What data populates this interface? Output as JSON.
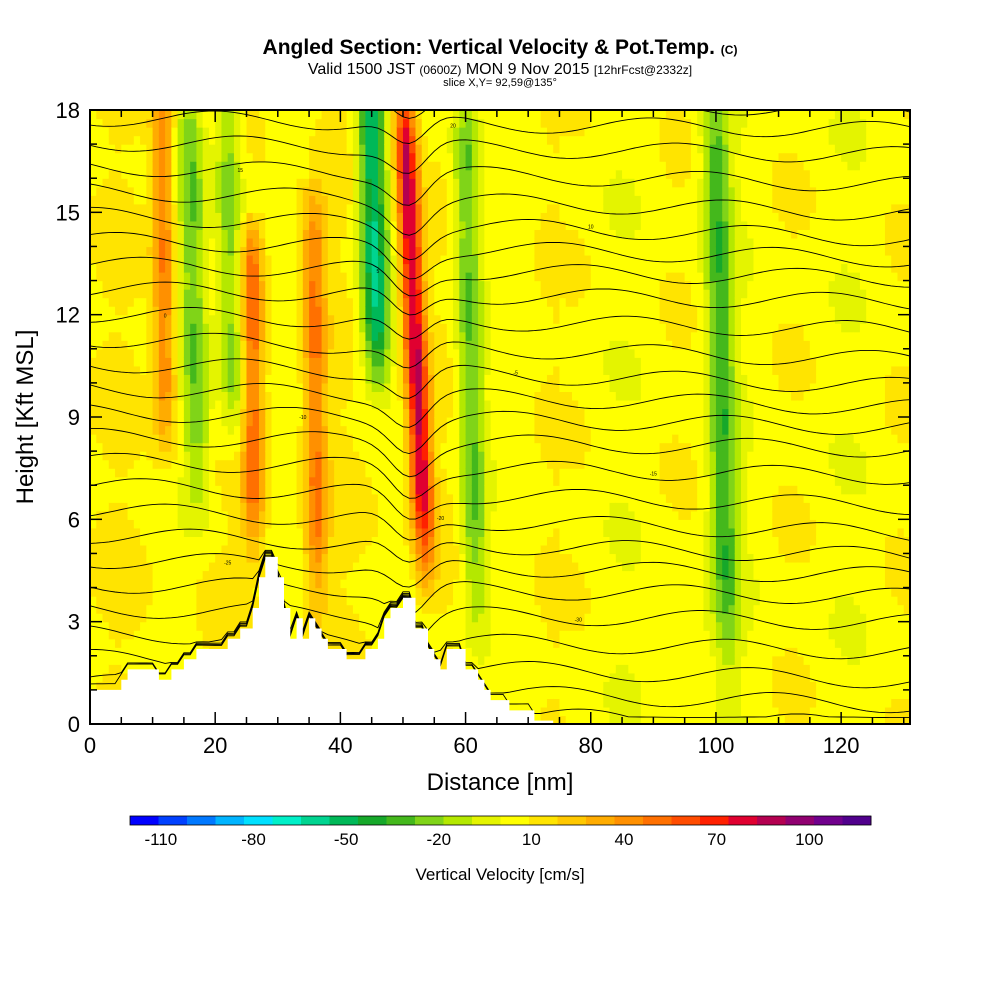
{
  "header": {
    "title": "Angled Section: Vertical Velocity & Pot.Temp.",
    "title_suffix": "(C)",
    "valid_prefix": "Valid 1500 JST",
    "valid_zulu": "(0600Z)",
    "valid_date": "MON 9 Nov 2015",
    "forecast": "[12hrFcst@2332z]",
    "slice": "slice X,Y= 92,59@135°"
  },
  "chart_data": {
    "type": "heatmap",
    "xlabel": "Distance [nm]",
    "ylabel": "Height [Kft MSL]",
    "xlim": [
      0,
      131
    ],
    "ylim": [
      0,
      18
    ],
    "x_ticks": [
      0,
      20,
      40,
      60,
      80,
      100,
      120
    ],
    "y_ticks": [
      0,
      3,
      6,
      9,
      12,
      15,
      18
    ],
    "colorbar": {
      "label": "Vertical Velocity [cm/s]",
      "tick_labels": [
        "-110",
        "-80",
        "-50",
        "-20",
        "10",
        "40",
        "70",
        "100"
      ],
      "tick_values": [
        -110,
        -80,
        -50,
        -20,
        10,
        40,
        70,
        100
      ],
      "range": [
        -120,
        120
      ],
      "colors": [
        "#0000ff",
        "#0040ff",
        "#0078ff",
        "#00b4ff",
        "#00e0ff",
        "#00f0c8",
        "#00d490",
        "#00b858",
        "#16a82a",
        "#44b81c",
        "#80d418",
        "#b4e800",
        "#e4f400",
        "#ffff00",
        "#ffe400",
        "#ffc800",
        "#ffac00",
        "#ff9000",
        "#ff7000",
        "#ff4c00",
        "#ff2000",
        "#e00030",
        "#b40050",
        "#900070",
        "#70008c",
        "#50008c"
      ]
    },
    "terrain": [
      [
        0,
        1
      ],
      [
        5,
        1
      ],
      [
        5,
        1.3
      ],
      [
        6,
        1.3
      ],
      [
        6,
        1.6
      ],
      [
        11,
        1.6
      ],
      [
        11,
        1.3
      ],
      [
        13,
        1.3
      ],
      [
        13,
        1.6
      ],
      [
        15,
        1.6
      ],
      [
        15,
        1.9
      ],
      [
        17,
        1.9
      ],
      [
        17,
        2.2
      ],
      [
        22,
        2.2
      ],
      [
        22,
        2.5
      ],
      [
        24,
        2.5
      ],
      [
        24,
        2.8
      ],
      [
        26,
        2.8
      ],
      [
        26,
        3.4
      ],
      [
        27,
        3.4
      ],
      [
        27,
        4.3
      ],
      [
        28,
        4.3
      ],
      [
        28,
        4.9
      ],
      [
        30,
        4.9
      ],
      [
        30,
        4.3
      ],
      [
        31,
        4.3
      ],
      [
        31,
        3.4
      ],
      [
        32,
        3.4
      ],
      [
        32,
        2.5
      ],
      [
        33,
        2.5
      ],
      [
        33,
        3.1
      ],
      [
        34,
        3.1
      ],
      [
        34,
        2.5
      ],
      [
        35,
        2.5
      ],
      [
        35,
        3.1
      ],
      [
        36,
        3.1
      ],
      [
        36,
        2.8
      ],
      [
        37,
        2.8
      ],
      [
        37,
        2.5
      ],
      [
        38,
        2.5
      ],
      [
        38,
        2.2
      ],
      [
        41,
        2.2
      ],
      [
        41,
        1.9
      ],
      [
        44,
        1.9
      ],
      [
        44,
        2.2
      ],
      [
        46,
        2.2
      ],
      [
        46,
        2.5
      ],
      [
        47,
        2.5
      ],
      [
        47,
        3.1
      ],
      [
        48,
        3.1
      ],
      [
        48,
        3.4
      ],
      [
        50,
        3.4
      ],
      [
        50,
        3.7
      ],
      [
        52,
        3.7
      ],
      [
        52,
        2.8
      ],
      [
        54,
        2.8
      ],
      [
        54,
        2.2
      ],
      [
        55,
        2.2
      ],
      [
        55,
        1.9
      ],
      [
        56,
        1.9
      ],
      [
        56,
        1.6
      ],
      [
        57,
        1.6
      ],
      [
        57,
        2.2
      ],
      [
        60,
        2.2
      ],
      [
        60,
        1.6
      ],
      [
        62,
        1.6
      ],
      [
        62,
        1.3
      ],
      [
        63,
        1.3
      ],
      [
        63,
        1.0
      ],
      [
        64,
        1.0
      ],
      [
        64,
        0.7
      ],
      [
        67,
        0.7
      ],
      [
        67,
        0.4
      ],
      [
        71,
        0.4
      ],
      [
        71,
        0.1
      ],
      [
        74,
        0.1
      ],
      [
        74,
        0
      ],
      [
        131,
        0
      ]
    ],
    "updrafts": [
      {
        "x": 12,
        "z0": 8,
        "z1": 18,
        "w": 40
      },
      {
        "x": 26,
        "z0": 5,
        "z1": 14,
        "w": 45
      },
      {
        "x": 36,
        "z0": 3,
        "z1": 15,
        "w": 40
      },
      {
        "x": 52.5,
        "z0": 4,
        "z1": 18,
        "w": 80
      }
    ],
    "downdrafts": [
      {
        "x": 17,
        "z0": 6,
        "z1": 18,
        "w": -25
      },
      {
        "x": 23,
        "z0": 8,
        "z1": 18,
        "w": -25
      },
      {
        "x": 46,
        "z0": 10,
        "z1": 18,
        "w": -55
      },
      {
        "x": 61,
        "z0": 2,
        "z1": 18,
        "w": -30
      },
      {
        "x": 101,
        "z0": 1,
        "z1": 18,
        "w": -30
      }
    ],
    "isentrope_labels": [
      "-40",
      "-35",
      "-30",
      "-25",
      "-20",
      "-15",
      "-10",
      "-5",
      "0",
      "5",
      "10",
      "15",
      "20"
    ]
  }
}
